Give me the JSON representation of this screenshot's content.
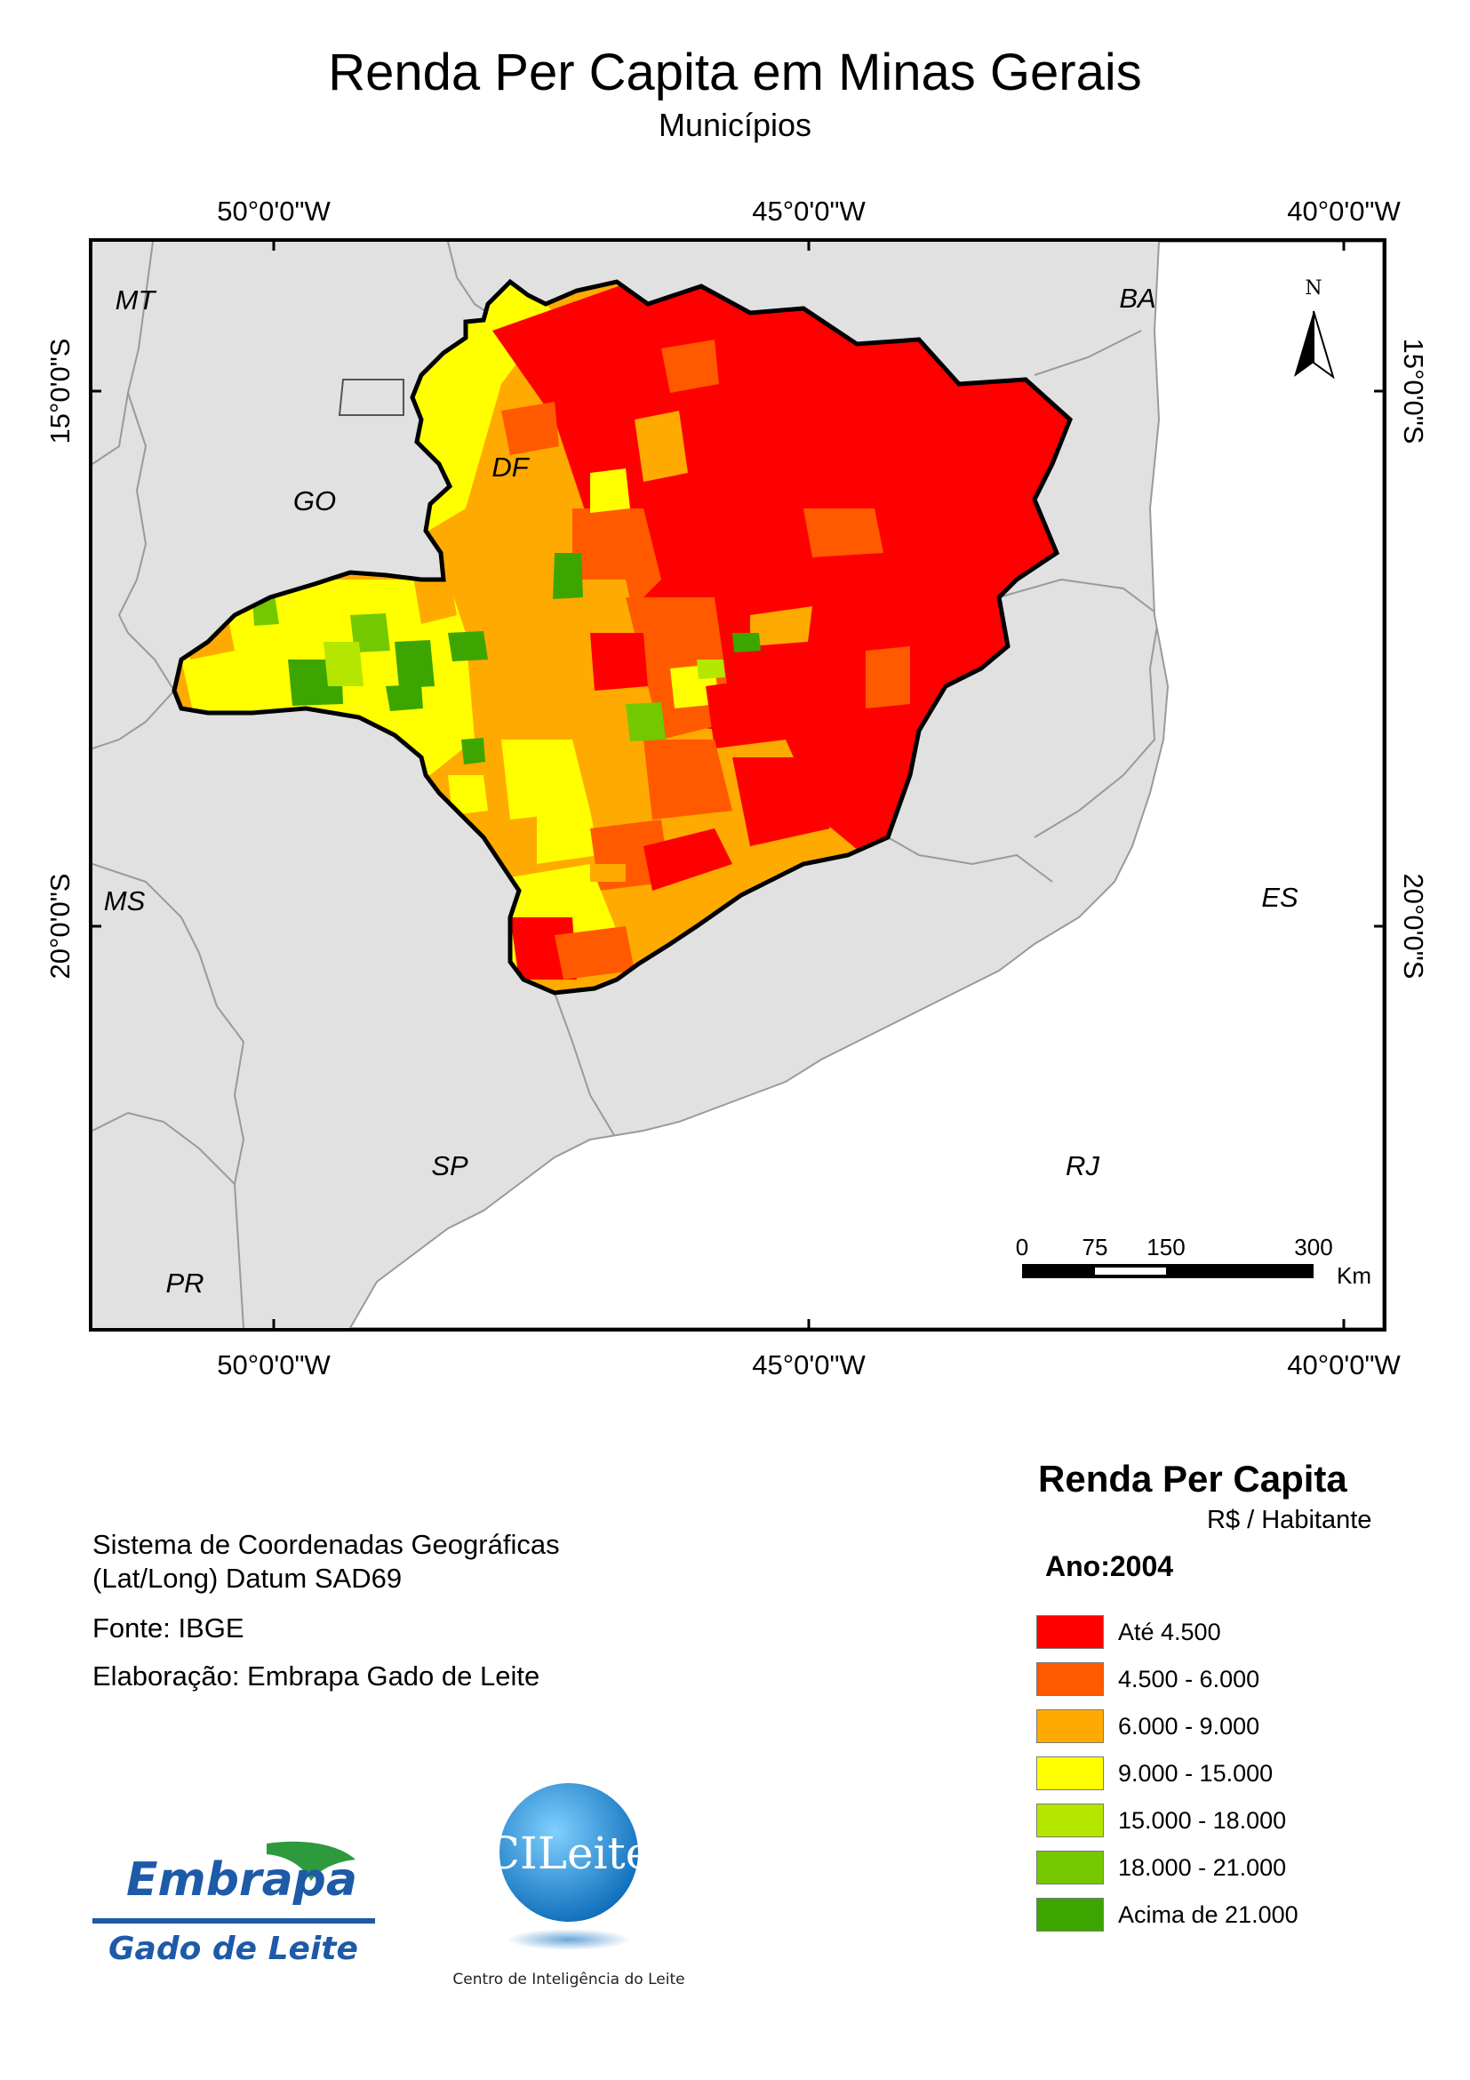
{
  "title": "Renda Per Capita em Minas Gerais",
  "subtitle": "Municípios",
  "graticule": {
    "longitudes": [
      "50°0'0\"W",
      "45°0'0\"W",
      "40°0'0\"W"
    ],
    "latitudes": [
      "15°0'0\"S",
      "20°0'0\"S"
    ]
  },
  "neighbors": [
    "MT",
    "BA",
    "GO",
    "DF",
    "MS",
    "ES",
    "SP",
    "RJ",
    "PR"
  ],
  "north_arrow": {
    "letter": "N"
  },
  "scale_bar": {
    "ticks": [
      "0",
      "75",
      "150",
      "300"
    ],
    "unit": "Km"
  },
  "legend": {
    "title": "Renda Per Capita",
    "unit": "R$ / Habitante",
    "year_label": "Ano:2004",
    "classes": [
      {
        "label": "Até 4.500",
        "color": "#ff0000"
      },
      {
        "label": "4.500 - 6.000",
        "color": "#ff5a00"
      },
      {
        "label": "6.000 - 9.000",
        "color": "#ffaa00"
      },
      {
        "label": "9.000 - 15.000",
        "color": "#ffff00"
      },
      {
        "label": "15.000 - 18.000",
        "color": "#b4e600"
      },
      {
        "label": "18.000 - 21.000",
        "color": "#73c800"
      },
      {
        "label": "Acima de 21.000",
        "color": "#3ca500"
      }
    ]
  },
  "info": {
    "crs_line1": "Sistema de Coordenadas Geográficas",
    "crs_line2": "(Lat/Long) Datum SAD69",
    "source": "Fonte: IBGE",
    "author": "Elaboração: Embrapa Gado de Leite"
  },
  "logos": {
    "embrapa_main": "Embrapa",
    "embrapa_sub": "Gado de Leite",
    "cileite_main": "CILeite",
    "cileite_sub": "Centro de Inteligência do Leite"
  }
}
